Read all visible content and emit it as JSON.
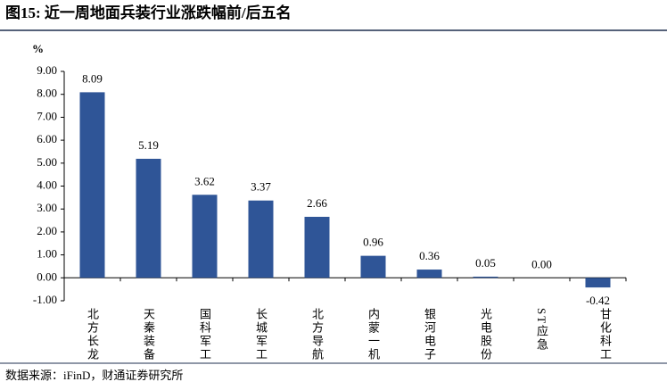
{
  "chart_data": {
    "type": "bar",
    "title": "图15: 近一周地面兵装行业涨跌幅前/后五名",
    "y_unit": "%",
    "source": "数据来源：iFinD，财通证券研究所",
    "categories": [
      "北方长龙",
      "天秦装备",
      "国科军工",
      "长城军工",
      "北方导航",
      "内蒙一机",
      "银河电子",
      "光电股份",
      "ST应急",
      "甘化科工"
    ],
    "values": [
      8.09,
      5.19,
      3.62,
      3.37,
      2.66,
      0.96,
      0.36,
      0.05,
      0.0,
      -0.42
    ],
    "value_labels": [
      "8.09",
      "5.19",
      "3.62",
      "3.37",
      "2.66",
      "0.96",
      "0.36",
      "0.05",
      "0.00",
      "-0.42"
    ],
    "color": "#2f5597",
    "ylim": [
      -1,
      9
    ],
    "yticks": [
      {
        "value": -1,
        "label": "-1.00"
      },
      {
        "value": 0,
        "label": "0.00"
      },
      {
        "value": 1,
        "label": "1.00"
      },
      {
        "value": 2,
        "label": "2.00"
      },
      {
        "value": 3,
        "label": "3.00"
      },
      {
        "value": 4,
        "label": "4.00"
      },
      {
        "value": 5,
        "label": "5.00"
      },
      {
        "value": 6,
        "label": "6.00"
      },
      {
        "value": 7,
        "label": "7.00"
      },
      {
        "value": 8,
        "label": "8.00"
      },
      {
        "value": 9,
        "label": "9.00"
      }
    ],
    "grid": false
  }
}
